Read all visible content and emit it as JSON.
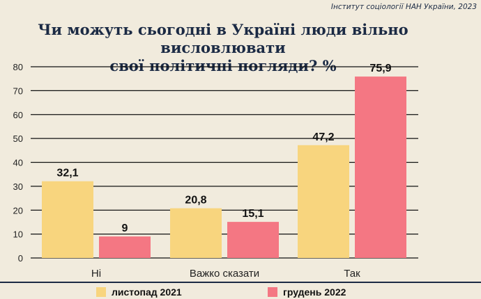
{
  "source": "Інститут соціології НАН України, 2023",
  "colors": {
    "series1": "#f8d57e",
    "series2": "#f47783",
    "text": "#1b2a44"
  },
  "chart_data": {
    "type": "bar",
    "title_lines": [
      "Чи можуть сьогодні в Україні люди вільно висловлювати",
      "свої політичні погляди? %"
    ],
    "categories": [
      "Ні",
      "Важко сказати",
      "Так"
    ],
    "series": [
      {
        "name": "листопад 2021",
        "values": [
          32.1,
          20.8,
          47.2
        ],
        "labels": [
          "32,1",
          "20,8",
          "47,2"
        ]
      },
      {
        "name": "грудень 2022",
        "values": [
          9,
          15.1,
          75.9
        ],
        "labels": [
          "9",
          "15,1",
          "75,9"
        ]
      }
    ],
    "yticks": [
      "0",
      "10",
      "20",
      "30",
      "40",
      "50",
      "60",
      "70",
      "80"
    ],
    "ylim": [
      0,
      80
    ],
    "grid": true,
    "legend": "bottom"
  }
}
